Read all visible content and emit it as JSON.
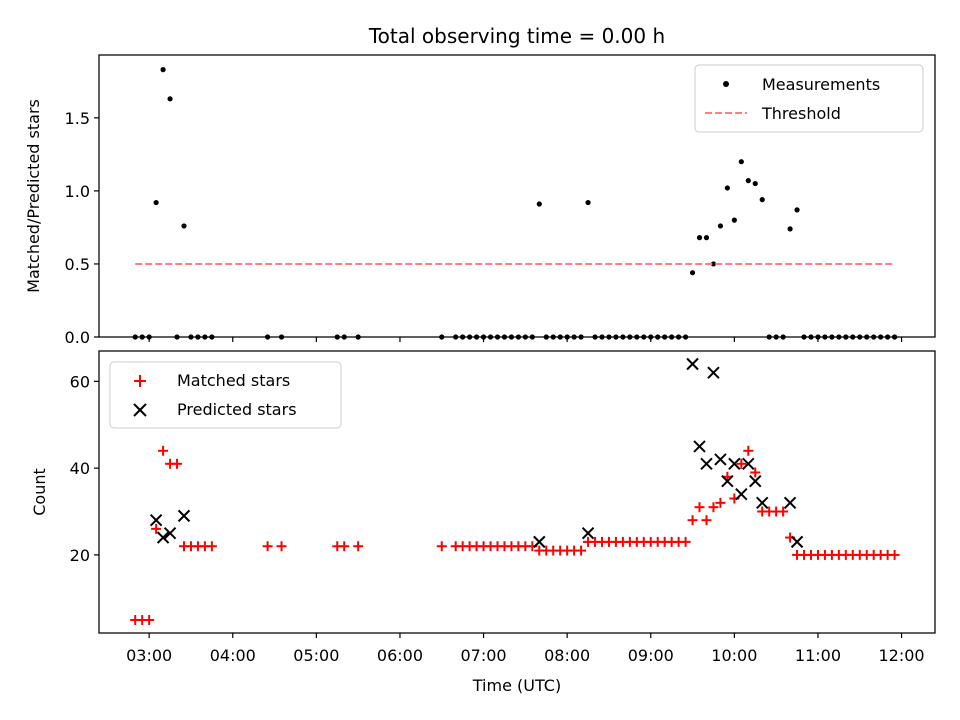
{
  "title": "Total observing time = 0.00 h",
  "xlabel": "Time (UTC)",
  "x_tick_labels": [
    "03:00",
    "04:00",
    "05:00",
    "06:00",
    "07:00",
    "08:00",
    "09:00",
    "10:00",
    "11:00",
    "12:00"
  ],
  "colors": {
    "measurement": "#000000",
    "threshold": "#ff7f7f",
    "matched": "#ff0000",
    "predicted": "#000000"
  },
  "chart_data": [
    {
      "type": "scatter",
      "ylabel": "Matched/Predicted stars",
      "ylim": [
        0,
        1.93
      ],
      "xlim": [
        "02:24",
        "12:24"
      ],
      "y_tick_labels": [
        "0.0",
        "0.5",
        "1.0",
        "1.5"
      ],
      "y_ticks": [
        0,
        0.5,
        1.0,
        1.5
      ],
      "legend_position": "top-right",
      "series": [
        {
          "name": "Measurements",
          "marker": "dot",
          "points": [
            [
              "02:50",
              0
            ],
            [
              "02:55",
              0
            ],
            [
              "03:00",
              0
            ],
            [
              "03:05",
              0.92
            ],
            [
              "03:10",
              1.83
            ],
            [
              "03:15",
              1.63
            ],
            [
              "03:20",
              0
            ],
            [
              "03:25",
              0.76
            ],
            [
              "03:30",
              0
            ],
            [
              "03:35",
              0
            ],
            [
              "03:40",
              0
            ],
            [
              "03:45",
              0
            ],
            [
              "04:25",
              0
            ],
            [
              "04:35",
              0
            ],
            [
              "05:15",
              0
            ],
            [
              "05:20",
              0
            ],
            [
              "05:30",
              0
            ],
            [
              "06:30",
              0
            ],
            [
              "06:40",
              0
            ],
            [
              "06:45",
              0
            ],
            [
              "06:50",
              0
            ],
            [
              "06:55",
              0
            ],
            [
              "07:00",
              0
            ],
            [
              "07:05",
              0
            ],
            [
              "07:10",
              0
            ],
            [
              "07:15",
              0
            ],
            [
              "07:20",
              0
            ],
            [
              "07:25",
              0
            ],
            [
              "07:30",
              0
            ],
            [
              "07:35",
              0
            ],
            [
              "07:40",
              0.91
            ],
            [
              "07:45",
              0
            ],
            [
              "07:50",
              0
            ],
            [
              "07:55",
              0
            ],
            [
              "08:00",
              0
            ],
            [
              "08:05",
              0
            ],
            [
              "08:10",
              0
            ],
            [
              "08:15",
              0.92
            ],
            [
              "08:20",
              0
            ],
            [
              "08:25",
              0
            ],
            [
              "08:30",
              0
            ],
            [
              "08:35",
              0
            ],
            [
              "08:40",
              0
            ],
            [
              "08:45",
              0
            ],
            [
              "08:50",
              0
            ],
            [
              "08:55",
              0
            ],
            [
              "09:00",
              0
            ],
            [
              "09:05",
              0
            ],
            [
              "09:10",
              0
            ],
            [
              "09:15",
              0
            ],
            [
              "09:20",
              0
            ],
            [
              "09:25",
              0
            ],
            [
              "09:30",
              0.44
            ],
            [
              "09:35",
              0.68
            ],
            [
              "09:40",
              0.68
            ],
            [
              "09:45",
              0.5
            ],
            [
              "09:50",
              0.76
            ],
            [
              "09:55",
              1.02
            ],
            [
              "10:00",
              0.8
            ],
            [
              "10:05",
              1.2
            ],
            [
              "10:10",
              1.07
            ],
            [
              "10:15",
              1.05
            ],
            [
              "10:20",
              0.94
            ],
            [
              "10:25",
              0
            ],
            [
              "10:30",
              0
            ],
            [
              "10:35",
              0
            ],
            [
              "10:40",
              0.74
            ],
            [
              "10:45",
              0.87
            ],
            [
              "10:50",
              0
            ],
            [
              "10:55",
              0
            ],
            [
              "11:00",
              0
            ],
            [
              "11:05",
              0
            ],
            [
              "11:10",
              0
            ],
            [
              "11:15",
              0
            ],
            [
              "11:20",
              0
            ],
            [
              "11:25",
              0
            ],
            [
              "11:30",
              0
            ],
            [
              "11:35",
              0
            ],
            [
              "11:40",
              0
            ],
            [
              "11:45",
              0
            ],
            [
              "11:50",
              0
            ],
            [
              "11:55",
              0
            ]
          ]
        },
        {
          "name": "Threshold",
          "marker": "dashed-line",
          "points": [
            [
              "02:50",
              0.5
            ],
            [
              "11:55",
              0.5
            ]
          ]
        }
      ]
    },
    {
      "type": "scatter",
      "ylabel": "Count",
      "ylim": [
        2,
        67
      ],
      "xlim": [
        "02:24",
        "12:24"
      ],
      "y_tick_labels": [
        "20",
        "40",
        "60"
      ],
      "y_ticks": [
        20,
        40,
        60
      ],
      "legend_position": "top-left",
      "series": [
        {
          "name": "Matched stars",
          "marker": "plus",
          "points": [
            [
              "02:50",
              5
            ],
            [
              "02:55",
              5
            ],
            [
              "03:00",
              5
            ],
            [
              "03:05",
              26
            ],
            [
              "03:10",
              44
            ],
            [
              "03:15",
              41
            ],
            [
              "03:20",
              41
            ],
            [
              "03:25",
              22
            ],
            [
              "03:30",
              22
            ],
            [
              "03:35",
              22
            ],
            [
              "03:40",
              22
            ],
            [
              "03:45",
              22
            ],
            [
              "04:25",
              22
            ],
            [
              "04:35",
              22
            ],
            [
              "05:15",
              22
            ],
            [
              "05:20",
              22
            ],
            [
              "05:30",
              22
            ],
            [
              "06:30",
              22
            ],
            [
              "06:40",
              22
            ],
            [
              "06:45",
              22
            ],
            [
              "06:50",
              22
            ],
            [
              "06:55",
              22
            ],
            [
              "07:00",
              22
            ],
            [
              "07:05",
              22
            ],
            [
              "07:10",
              22
            ],
            [
              "07:15",
              22
            ],
            [
              "07:20",
              22
            ],
            [
              "07:25",
              22
            ],
            [
              "07:30",
              22
            ],
            [
              "07:35",
              22
            ],
            [
              "07:40",
              21
            ],
            [
              "07:45",
              21
            ],
            [
              "07:50",
              21
            ],
            [
              "07:55",
              21
            ],
            [
              "08:00",
              21
            ],
            [
              "08:05",
              21
            ],
            [
              "08:10",
              21
            ],
            [
              "08:15",
              23
            ],
            [
              "08:20",
              23
            ],
            [
              "08:25",
              23
            ],
            [
              "08:30",
              23
            ],
            [
              "08:35",
              23
            ],
            [
              "08:40",
              23
            ],
            [
              "08:45",
              23
            ],
            [
              "08:50",
              23
            ],
            [
              "08:55",
              23
            ],
            [
              "09:00",
              23
            ],
            [
              "09:05",
              23
            ],
            [
              "09:10",
              23
            ],
            [
              "09:15",
              23
            ],
            [
              "09:20",
              23
            ],
            [
              "09:25",
              23
            ],
            [
              "09:30",
              28
            ],
            [
              "09:35",
              31
            ],
            [
              "09:40",
              28
            ],
            [
              "09:45",
              31
            ],
            [
              "09:50",
              32
            ],
            [
              "09:55",
              38
            ],
            [
              "10:00",
              33
            ],
            [
              "10:05",
              41
            ],
            [
              "10:10",
              44
            ],
            [
              "10:15",
              39
            ],
            [
              "10:20",
              30
            ],
            [
              "10:25",
              30
            ],
            [
              "10:30",
              30
            ],
            [
              "10:35",
              30
            ],
            [
              "10:40",
              24
            ],
            [
              "10:45",
              20
            ],
            [
              "10:50",
              20
            ],
            [
              "10:55",
              20
            ],
            [
              "11:00",
              20
            ],
            [
              "11:05",
              20
            ],
            [
              "11:10",
              20
            ],
            [
              "11:15",
              20
            ],
            [
              "11:20",
              20
            ],
            [
              "11:25",
              20
            ],
            [
              "11:30",
              20
            ],
            [
              "11:35",
              20
            ],
            [
              "11:40",
              20
            ],
            [
              "11:45",
              20
            ],
            [
              "11:50",
              20
            ],
            [
              "11:55",
              20
            ]
          ]
        },
        {
          "name": "Predicted stars",
          "marker": "x",
          "points": [
            [
              "03:05",
              28
            ],
            [
              "03:10",
              24
            ],
            [
              "03:15",
              25
            ],
            [
              "03:25",
              29
            ],
            [
              "07:40",
              23
            ],
            [
              "08:15",
              25
            ],
            [
              "09:30",
              64
            ],
            [
              "09:35",
              45
            ],
            [
              "09:40",
              41
            ],
            [
              "09:45",
              62
            ],
            [
              "09:50",
              42
            ],
            [
              "09:55",
              37
            ],
            [
              "10:00",
              41
            ],
            [
              "10:05",
              34
            ],
            [
              "10:10",
              41
            ],
            [
              "10:15",
              37
            ],
            [
              "10:20",
              32
            ],
            [
              "10:40",
              32
            ],
            [
              "10:45",
              23
            ]
          ]
        }
      ]
    }
  ]
}
